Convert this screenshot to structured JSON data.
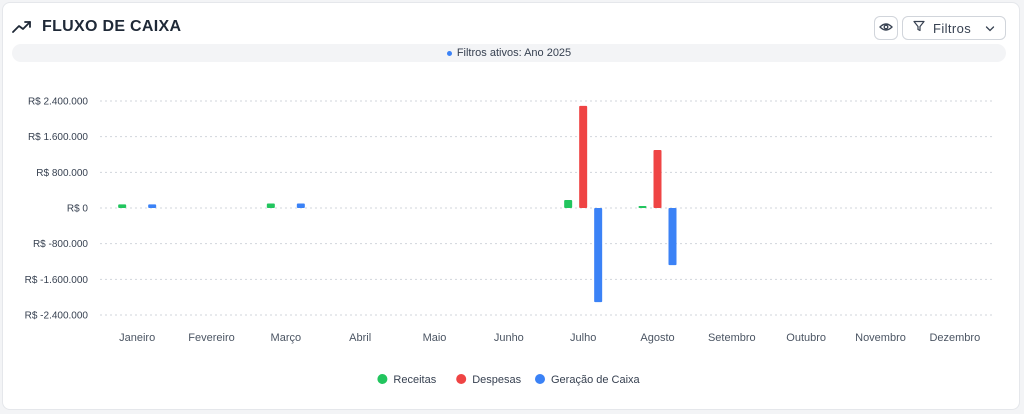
{
  "header": {
    "title": "FLUXO DE CAIXA",
    "title_icon": "trending-up-icon",
    "eye_icon": "eye-icon",
    "filter_icon": "filter-icon",
    "filter_label": "Filtros",
    "chevron_icon": "chevron-down-icon"
  },
  "active_filters": {
    "text": "Filtros ativos: Ano 2025",
    "dot_color": "#3b82f6"
  },
  "chart_data": {
    "type": "bar",
    "title": "",
    "xlabel": "",
    "ylabel": "",
    "categories": [
      "Janeiro",
      "Fevereiro",
      "Março",
      "Abril",
      "Maio",
      "Junho",
      "Julho",
      "Agosto",
      "Setembro",
      "Outubro",
      "Novembro",
      "Dezembro"
    ],
    "ylim": [
      -2400000,
      2400000
    ],
    "yticks": [
      2400000,
      1600000,
      800000,
      0,
      -800000,
      -1600000,
      -2400000
    ],
    "ytick_labels": [
      "R$ 2.400.000",
      "R$ 1.600.000",
      "R$ 800.000",
      "R$ 0",
      "R$ -800.000",
      "R$ -1.600.000",
      "R$ -2.400.000"
    ],
    "grid": true,
    "legend_position": "bottom",
    "series": [
      {
        "name": "Receitas",
        "color": "#22c55e",
        "values": [
          80000,
          0,
          100000,
          0,
          0,
          0,
          180000,
          20000,
          0,
          0,
          0,
          0
        ]
      },
      {
        "name": "Despesas",
        "color": "#ef4444",
        "values": [
          0,
          0,
          0,
          0,
          0,
          0,
          2290000,
          1300000,
          0,
          0,
          0,
          0
        ]
      },
      {
        "name": "Geração de Caixa",
        "color": "#3b82f6",
        "values": [
          80000,
          0,
          100000,
          0,
          0,
          0,
          -2110000,
          -1280000,
          0,
          0,
          0,
          0
        ]
      }
    ]
  }
}
